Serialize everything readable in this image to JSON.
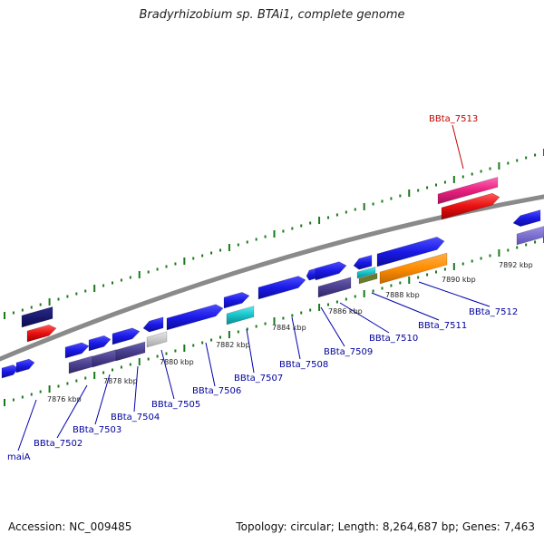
{
  "title": "Bradyrhizobium sp. BTAi1, complete genome",
  "footer": {
    "accession": "Accession: NC_009485",
    "summary": "Topology: circular; Length: 8,264,687 bp; Genes: 7,463"
  },
  "colors": {
    "forward_gene": "#1a1ae6",
    "reverse_gene_dark": "#4a3f8f",
    "trna": "#17c2c8",
    "highlight_pink": "#e8207e",
    "highlight_red": "#e81010",
    "orange": "#ff8c00",
    "olive": "#6b7a2b",
    "grey": "#c8c8c8",
    "tick_green": "#1a7a1a",
    "label_blue": "#00009e",
    "label_red": "#c00000"
  },
  "kbp_labels": [
    "7876 kbp",
    "7878 kbp",
    "7880 kbp",
    "7882 kbp",
    "7884 kbp",
    "7886 kbp",
    "7888 kbp",
    "7890 kbp",
    "7892 kbp"
  ],
  "gene_labels": [
    "maiA",
    "BBta_7502",
    "BBta_7503",
    "BBta_7504",
    "BBta_7505",
    "BBta_7506",
    "BBta_7507",
    "BBta_7508",
    "BBta_7509",
    "BBta_7510",
    "BBta_7511",
    "BBta_7512"
  ],
  "highlight_label": "BBta_7513"
}
